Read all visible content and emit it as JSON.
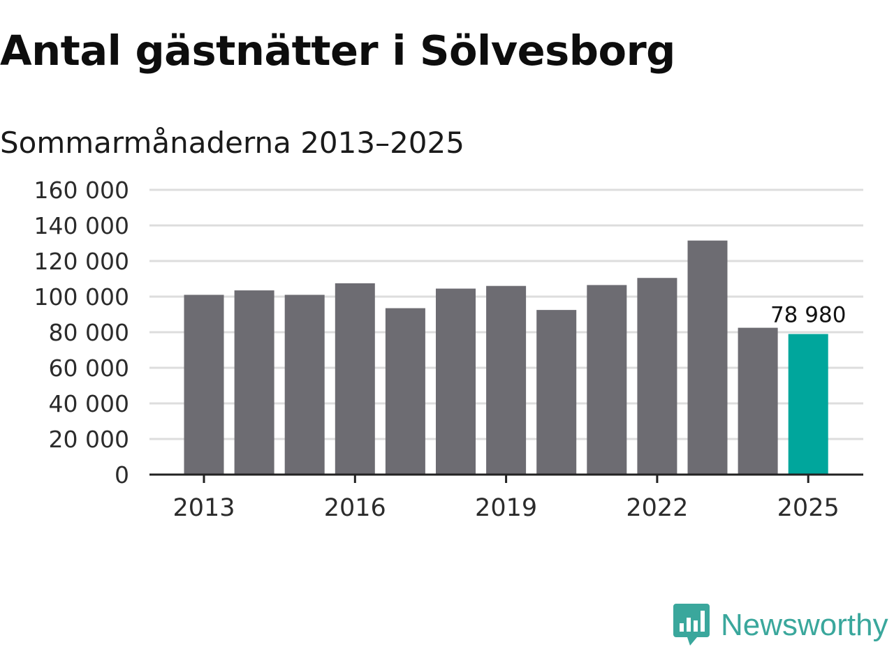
{
  "title": "Antal gästnätter i Sölvesborg",
  "subtitle": "Sommarmånaderna 2013–2025",
  "brand": {
    "name": "Newsworthy",
    "color": "#3aa79c",
    "icon": "bar-chart-speech-bubble-icon"
  },
  "colors": {
    "bar": "#6d6c72",
    "highlight": "#00a69c",
    "grid": "#dddddd",
    "axis": "#222222"
  },
  "chart_data": {
    "type": "bar",
    "categories": [
      "2013",
      "2014",
      "2015",
      "2016",
      "2017",
      "2018",
      "2019",
      "2020",
      "2021",
      "2022",
      "2023",
      "2024",
      "2025"
    ],
    "values": [
      101000,
      103500,
      101000,
      107500,
      93500,
      104500,
      106000,
      92500,
      106500,
      110500,
      131500,
      82500,
      78980
    ],
    "highlight_index": 12,
    "data_labels": [
      {
        "index": 12,
        "text": "78 980"
      }
    ],
    "x_tick_labels": [
      "2013",
      "2016",
      "2019",
      "2022",
      "2025"
    ],
    "y_tick_labels": [
      "0",
      "20 000",
      "40 000",
      "60 000",
      "80 000",
      "100 000",
      "120 000",
      "140 000",
      "160 000"
    ],
    "y_ticks": [
      0,
      20000,
      40000,
      60000,
      80000,
      100000,
      120000,
      140000,
      160000
    ],
    "ylim": [
      0,
      160000
    ],
    "grid": true,
    "legend": "none",
    "xlabel": "",
    "ylabel": ""
  }
}
